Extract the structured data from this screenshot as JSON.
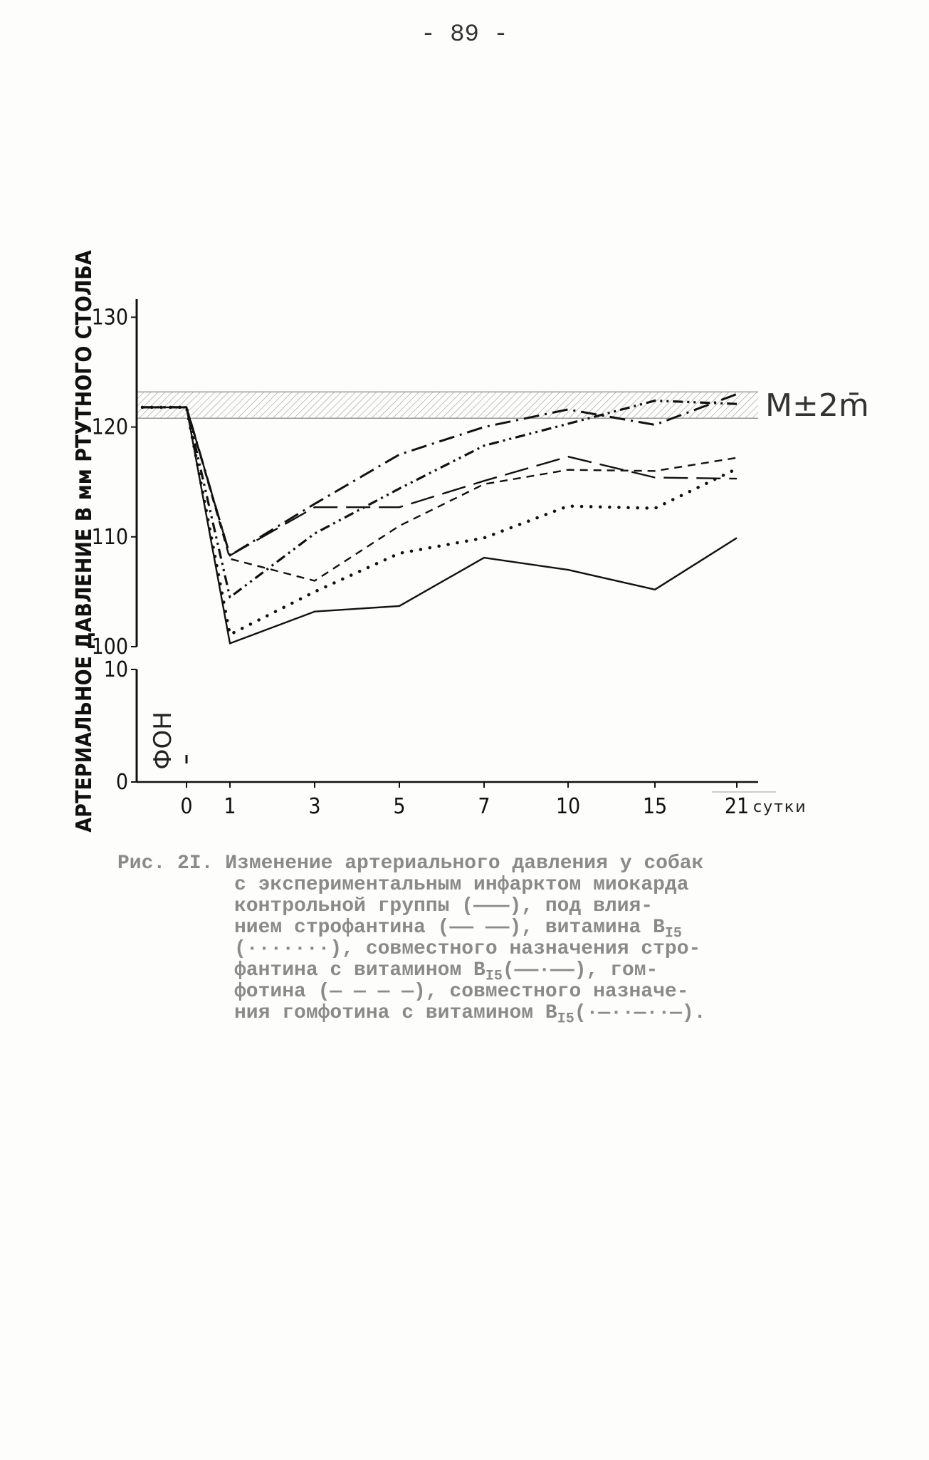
{
  "page": {
    "number": "- 89 -"
  },
  "chart_data": {
    "type": "line",
    "title": "",
    "xlabel": "сутки",
    "ylabel": "АРТЕРИАЛЬНОЕ ДАВЛЕНИЕ В мм РТУТНОГО СТОЛБА",
    "x_tick_labels": [
      "0",
      "1",
      "3",
      "5",
      "7",
      "10",
      "15",
      "21"
    ],
    "y_tick_labels_upper": [
      "100",
      "110",
      "120",
      "130"
    ],
    "y_tick_labels_lower": [
      "0",
      "10"
    ],
    "ylim_upper": [
      100,
      131
    ],
    "ylim_lower": [
      0,
      10
    ],
    "background_label": "ФОН",
    "band": {
      "label": "M±2m̄",
      "low": 120.8,
      "high": 123.2
    },
    "series": [
      {
        "style": "solid-thin",
        "x": [
          "0",
          "1",
          "3",
          "5",
          "7",
          "10",
          "15",
          "21"
        ],
        "y": [
          121.8,
          100.3,
          103.2,
          103.7,
          108.1,
          107.0,
          105.2,
          109.9
        ]
      },
      {
        "style": "long-dash",
        "x": [
          "0",
          "1",
          "3",
          "5",
          "7",
          "10",
          "15",
          "21"
        ],
        "y": [
          121.8,
          108.3,
          112.7,
          112.7,
          115.1,
          117.3,
          115.4,
          115.3
        ]
      },
      {
        "style": "dotted",
        "x": [
          "0",
          "1",
          "3",
          "5",
          "7",
          "10",
          "15",
          "21"
        ],
        "y": [
          121.8,
          101.1,
          105.0,
          108.5,
          109.9,
          112.8,
          112.6,
          116.2
        ]
      },
      {
        "style": "dash-dot",
        "x": [
          "0",
          "1",
          "3",
          "5",
          "7",
          "10",
          "15",
          "21"
        ],
        "y": [
          121.8,
          108.3,
          113.0,
          117.5,
          120.0,
          121.6,
          120.2,
          123.0
        ]
      },
      {
        "style": "dashed",
        "x": [
          "0",
          "1",
          "3",
          "5",
          "7",
          "10",
          "15",
          "21"
        ],
        "y": [
          121.8,
          108.0,
          106.0,
          111.0,
          114.8,
          116.1,
          116.0,
          117.2
        ]
      },
      {
        "style": "dash-dot-dot",
        "x": [
          "0",
          "1",
          "3",
          "5",
          "7",
          "10",
          "15",
          "21"
        ],
        "y": [
          121.8,
          104.5,
          110.3,
          114.4,
          118.3,
          120.3,
          122.4,
          122.1
        ]
      }
    ]
  },
  "caption": {
    "lines": [
      "Рис. 2I. Изменение артериального давления у собак",
      "с экспериментальным инфарктом миокарда",
      "контрольной группы (———), под влия-",
      "нием строфантина (—— ——), витамина B",
      "(·······), совместного назначения стро-",
      "фантина с витамином B   (——·——), гом-",
      "фотина (— — — —), совместного назначе-",
      "ния гомфотина с витамином B   (·—··—··—)."
    ],
    "subscript": "I5"
  }
}
